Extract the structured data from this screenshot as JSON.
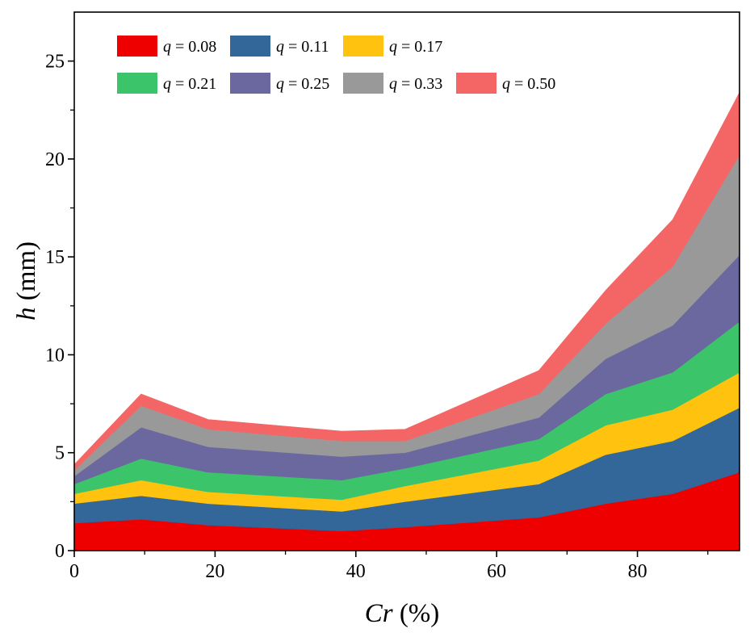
{
  "chart_data": {
    "type": "area",
    "stacked": true,
    "x": [
      0,
      9.5,
      19,
      38,
      47,
      66,
      75.5,
      85,
      94.5
    ],
    "series": [
      {
        "name": "q = 0.08",
        "q_value": "0.08",
        "color": "#ee0000",
        "values": [
          1.4,
          1.6,
          1.3,
          1.0,
          1.2,
          1.7,
          2.4,
          2.9,
          4.0
        ]
      },
      {
        "name": "q = 0.11",
        "q_value": "0.11",
        "color": "#336699",
        "values": [
          1.0,
          1.2,
          1.1,
          1.0,
          1.3,
          1.7,
          2.5,
          2.7,
          3.3
        ]
      },
      {
        "name": "q = 0.17",
        "q_value": "0.17",
        "color": "#ffc20e",
        "values": [
          0.5,
          0.8,
          0.6,
          0.6,
          0.8,
          1.2,
          1.5,
          1.6,
          1.8
        ]
      },
      {
        "name": "q = 0.21",
        "q_value": "0.21",
        "color": "#3cc46b",
        "values": [
          0.5,
          1.1,
          1.0,
          1.0,
          0.9,
          1.1,
          1.6,
          1.9,
          2.6
        ]
      },
      {
        "name": "q = 0.25",
        "q_value": "0.25",
        "color": "#6b68a0",
        "values": [
          0.4,
          1.6,
          1.3,
          1.2,
          0.8,
          1.1,
          1.8,
          2.4,
          3.4
        ]
      },
      {
        "name": "q = 0.33",
        "q_value": "0.33",
        "color": "#999999",
        "values": [
          0.3,
          1.1,
          0.9,
          0.8,
          0.6,
          1.2,
          1.8,
          3.0,
          5.1
        ]
      },
      {
        "name": "q = 0.50",
        "q_value": "0.50",
        "color": "#f46666",
        "values": [
          0.3,
          0.6,
          0.5,
          0.5,
          0.6,
          1.2,
          1.7,
          2.4,
          3.2
        ]
      }
    ],
    "xlabel_main": "Cr",
    "xlabel_unit": " (%)",
    "ylabel_main": "h",
    "ylabel_unit": " (mm)",
    "legend_symbol": "q",
    "legend_eq": " = ",
    "xlim": [
      0,
      94.5
    ],
    "ylim": [
      0,
      27.5
    ],
    "xticks": [
      0,
      20,
      40,
      60,
      80
    ],
    "yticks": [
      0,
      5,
      10,
      15,
      20,
      25
    ],
    "grid": false,
    "legend_position": "top-left"
  }
}
